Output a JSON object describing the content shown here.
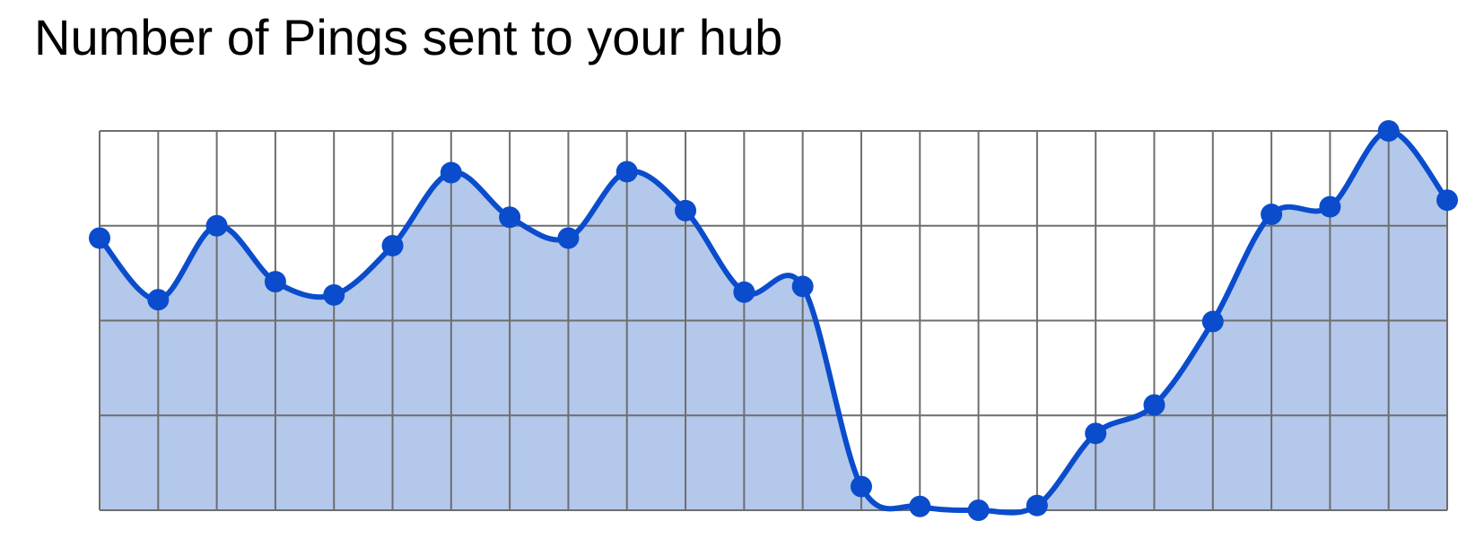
{
  "chart_data": {
    "type": "area",
    "title": "Number of Pings sent to your hub",
    "xlabel": "",
    "ylabel": "",
    "x": [
      1,
      2,
      3,
      4,
      5,
      6,
      7,
      8,
      9,
      10,
      11,
      12,
      13,
      14,
      15,
      16,
      17,
      18,
      19,
      20,
      21,
      22,
      23,
      24
    ],
    "values": [
      2.87,
      2.22,
      3.0,
      2.41,
      2.27,
      2.79,
      3.56,
      3.09,
      2.87,
      3.57,
      3.16,
      2.3,
      2.36,
      0.25,
      0.04,
      0.0,
      0.05,
      0.81,
      1.11,
      1.99,
      3.12,
      3.2,
      4.0,
      3.27
    ],
    "ylim": [
      0,
      4
    ],
    "xlim": [
      1,
      24
    ],
    "grid": true,
    "x_gridlines": 24,
    "y_gridlines": 5,
    "colors": {
      "line": "#0a4ccc",
      "fill": "#b3c8eb",
      "grid": "#6e6e6e",
      "marker": "#0a4ccc"
    }
  }
}
